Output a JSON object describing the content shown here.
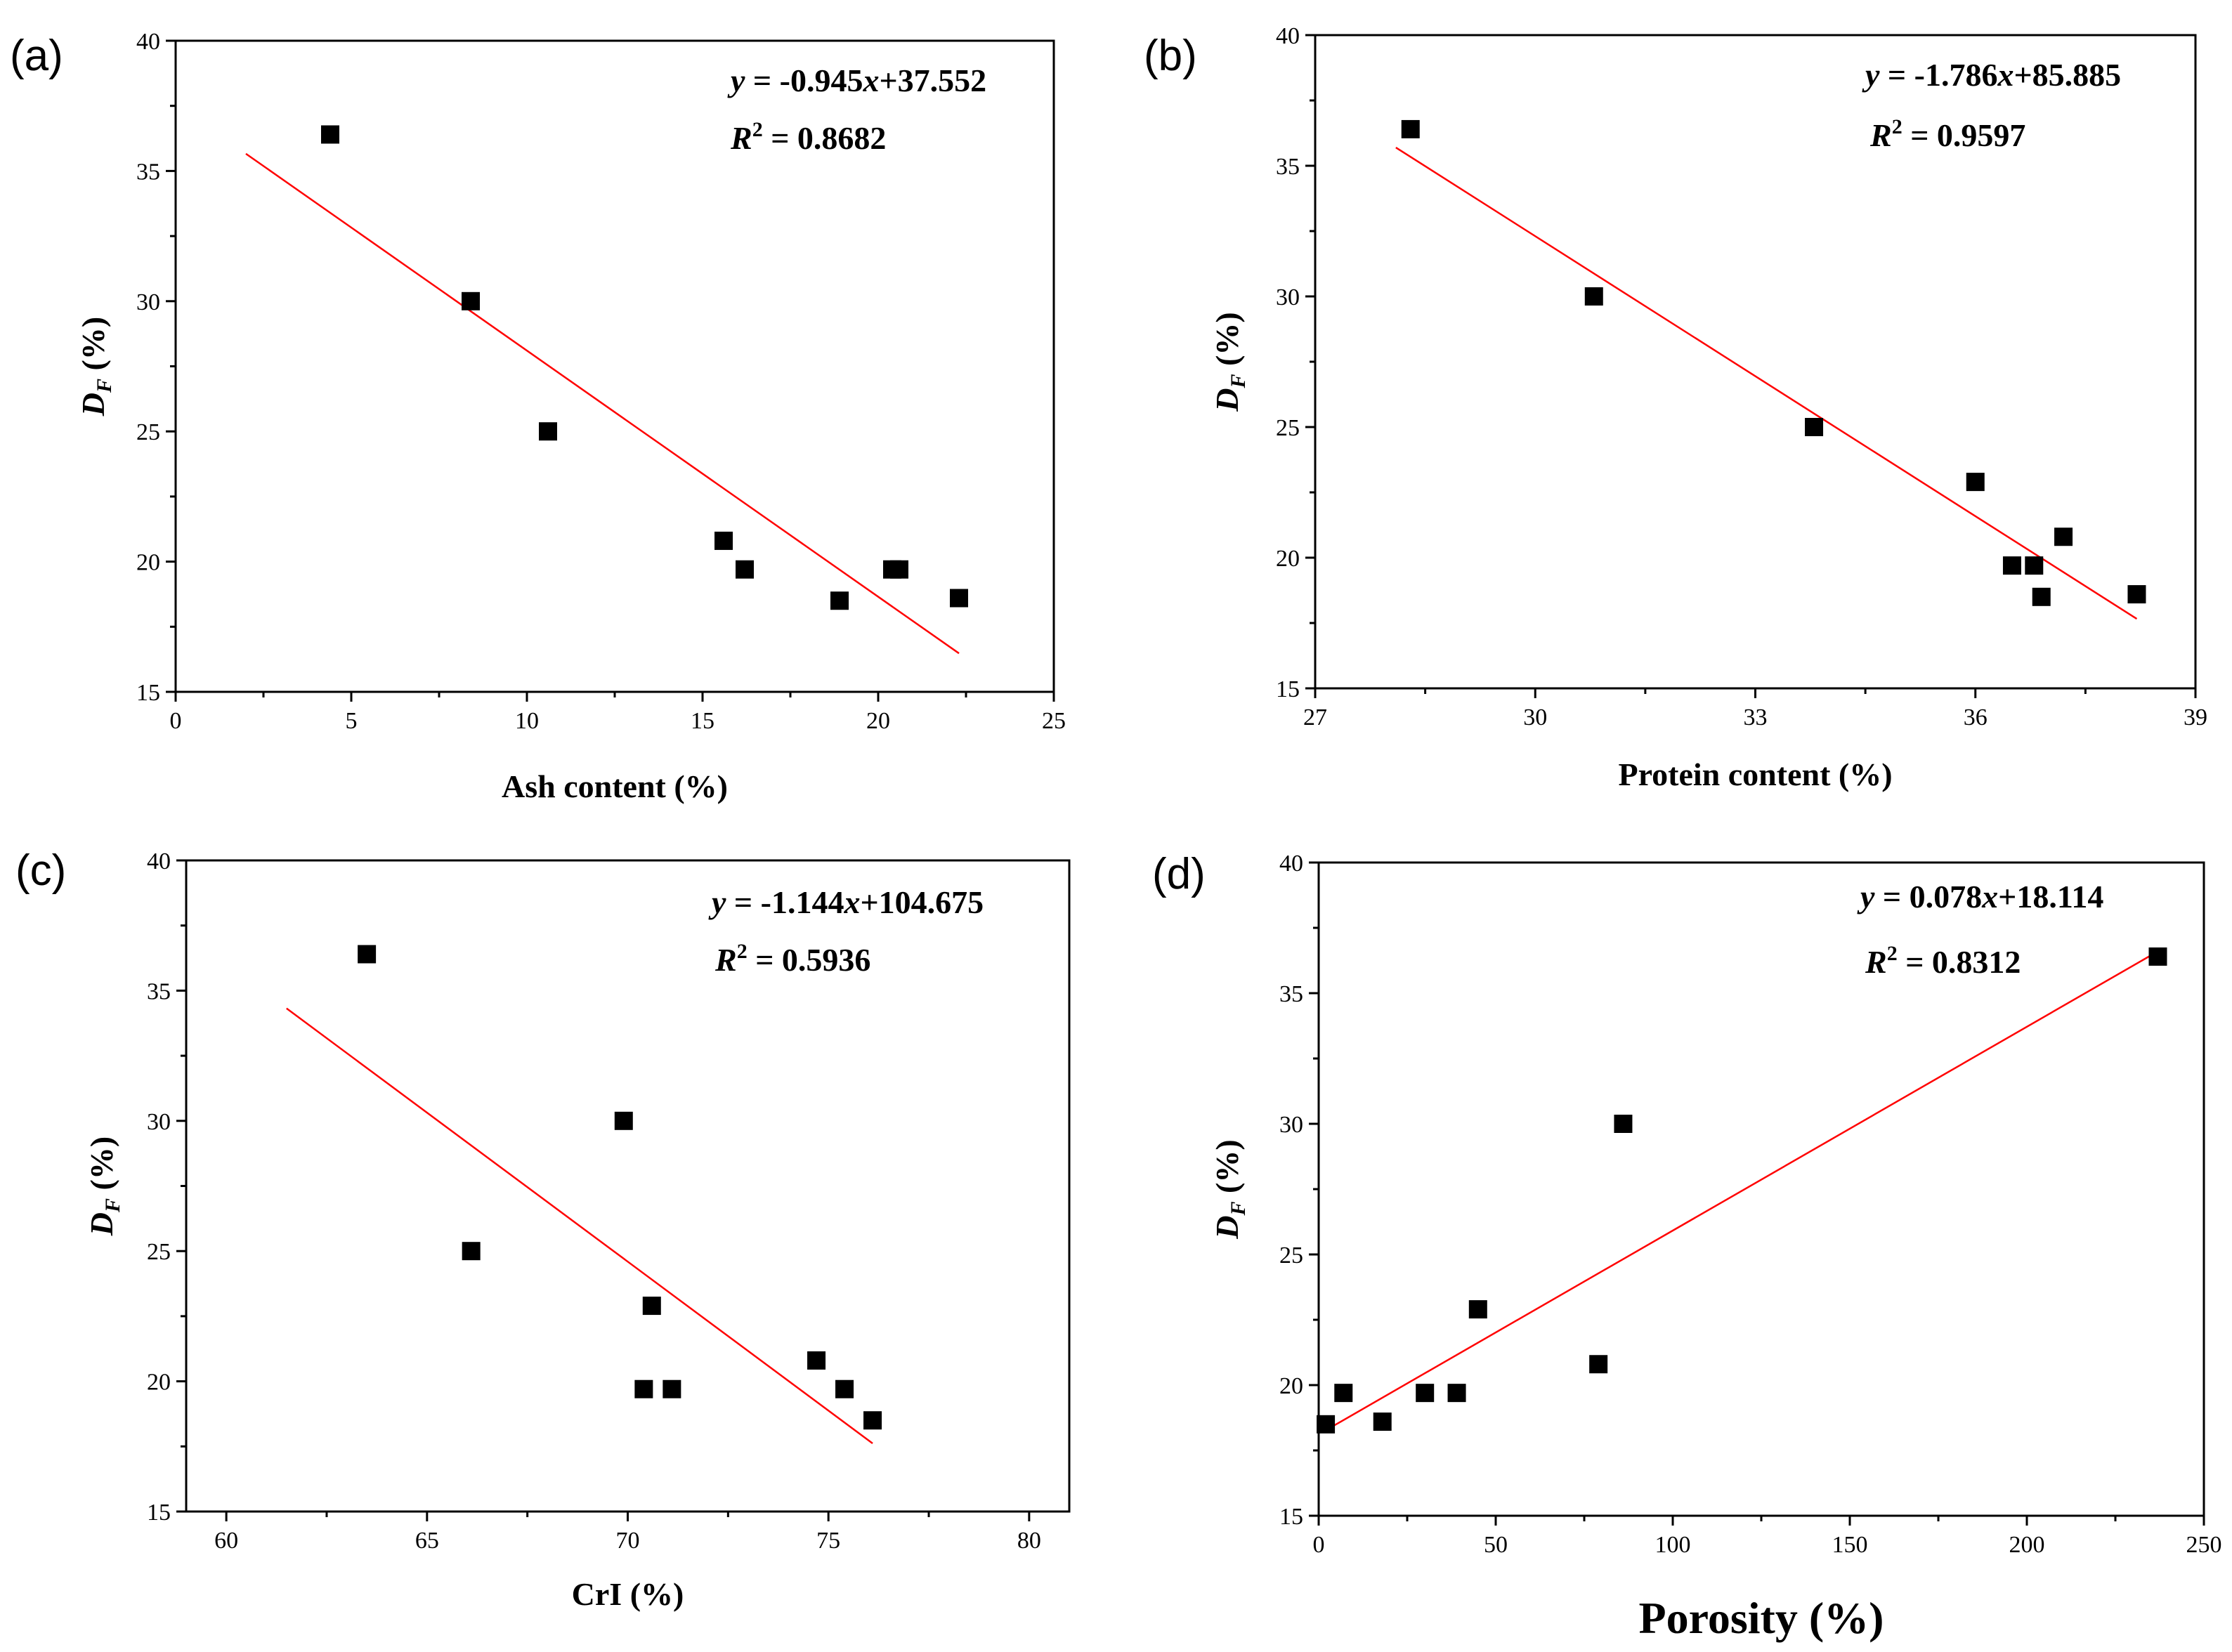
{
  "chart_data": [
    {
      "type": "scatter",
      "panel_label": "(a)",
      "xlabel": "Ash content (%)",
      "ylabel": {
        "main": "D",
        "sub": "F",
        "rest": " (%)"
      },
      "xlim": [
        0,
        25
      ],
      "ylim": [
        15,
        40
      ],
      "xticks": [
        0,
        5,
        10,
        15,
        20,
        25
      ],
      "yticks": [
        15,
        20,
        25,
        30,
        35,
        40
      ],
      "points": [
        [
          4.4,
          36.4
        ],
        [
          8.4,
          30.0
        ],
        [
          10.6,
          25.0
        ],
        [
          15.6,
          20.8
        ],
        [
          16.2,
          19.7
        ],
        [
          18.9,
          18.5
        ],
        [
          20.4,
          19.7
        ],
        [
          20.6,
          19.7
        ],
        [
          22.3,
          18.6
        ]
      ],
      "fit": {
        "slope": -0.945,
        "intercept": 37.552,
        "x_range": [
          2.0,
          22.3
        ]
      },
      "equation": {
        "y": "y",
        "rest1": " = -0.945",
        "x": "x",
        "rest2": "+37.552"
      },
      "r2": {
        "r": "R",
        "sup": "2",
        "rest": " = 0.8682"
      }
    },
    {
      "type": "scatter",
      "panel_label": "(b)",
      "xlabel": "Protein content (%)",
      "ylabel": {
        "main": "D",
        "sub": "F",
        "rest": " (%)"
      },
      "xlim": [
        27,
        39
      ],
      "ylim": [
        15,
        40
      ],
      "xticks": [
        27,
        30,
        33,
        36,
        39
      ],
      "yticks": [
        15,
        20,
        25,
        30,
        35,
        40
      ],
      "points": [
        [
          28.3,
          36.4
        ],
        [
          30.8,
          30.0
        ],
        [
          33.8,
          25.0
        ],
        [
          36.0,
          22.9
        ],
        [
          36.5,
          19.7
        ],
        [
          36.8,
          19.7
        ],
        [
          36.9,
          18.5
        ],
        [
          37.2,
          20.8
        ],
        [
          38.2,
          18.6
        ]
      ],
      "fit": {
        "slope": -1.786,
        "intercept": 85.885,
        "x_range": [
          28.1,
          38.2
        ]
      },
      "equation": {
        "y": "y",
        "rest1": " = -1.786",
        "x": "x",
        "rest2": "+85.885"
      },
      "r2": {
        "r": "R",
        "sup": "2",
        "rest": " = 0.9597"
      }
    },
    {
      "type": "scatter",
      "panel_label": "(c)",
      "xlabel": "CrI (%)",
      "ylabel": {
        "main": "D",
        "sub": "F",
        "rest": " (%)"
      },
      "xlim": [
        59,
        81
      ],
      "ylim": [
        15,
        40
      ],
      "xticks": [
        60,
        65,
        70,
        75,
        80
      ],
      "yticks": [
        15,
        20,
        25,
        30,
        35,
        40
      ],
      "points": [
        [
          63.5,
          36.4
        ],
        [
          66.1,
          25.0
        ],
        [
          69.9,
          30.0
        ],
        [
          70.4,
          19.7
        ],
        [
          70.6,
          22.9
        ],
        [
          71.1,
          19.7
        ],
        [
          74.7,
          20.8
        ],
        [
          75.4,
          19.7
        ],
        [
          76.1,
          18.5
        ]
      ],
      "fit": {
        "slope": -1.144,
        "intercept": 104.675,
        "x_range": [
          61.5,
          76.1
        ]
      },
      "equation": {
        "y": "y",
        "rest1": " = -1.144",
        "x": "x",
        "rest2": "+104.675"
      },
      "r2": {
        "r": "R",
        "sup": "2",
        "rest": " = 0.5936"
      }
    },
    {
      "type": "scatter",
      "panel_label": "(d)",
      "xlabel": "Porosity (%)",
      "ylabel": {
        "main": "D",
        "sub": "F",
        "rest": " (%)"
      },
      "xlim": [
        0,
        250
      ],
      "ylim": [
        15,
        40
      ],
      "xticks": [
        0,
        50,
        100,
        150,
        200,
        250
      ],
      "yticks": [
        15,
        20,
        25,
        30,
        35,
        40
      ],
      "points": [
        [
          2,
          18.5
        ],
        [
          7,
          19.7
        ],
        [
          18,
          18.6
        ],
        [
          30,
          19.7
        ],
        [
          39,
          19.7
        ],
        [
          45,
          22.9
        ],
        [
          79,
          20.8
        ],
        [
          86,
          30.0
        ],
        [
          237,
          36.4
        ]
      ],
      "fit": {
        "slope": 0.078,
        "intercept": 18.114,
        "x_range": [
          2,
          237
        ]
      },
      "equation": {
        "y": "y",
        "rest1": " = 0.078",
        "x": "x",
        "rest2": "+18.114"
      },
      "r2": {
        "r": "R",
        "sup": "2",
        "rest": " = 0.8312"
      }
    }
  ]
}
